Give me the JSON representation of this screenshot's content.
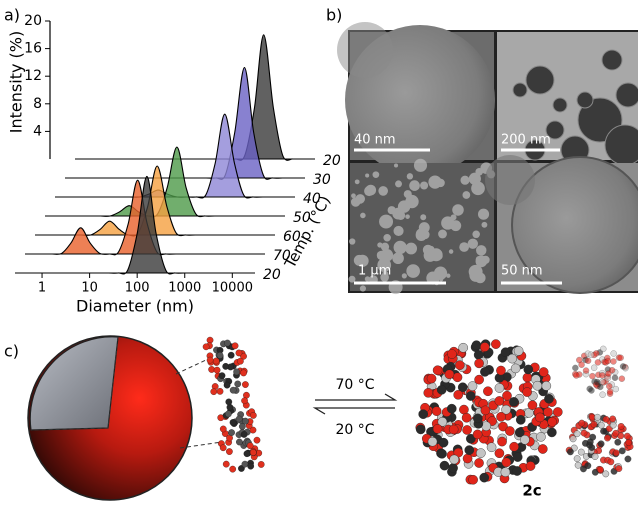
{
  "panel_labels": [
    "a)",
    "b)",
    "c)"
  ],
  "chart_data": {
    "type": "waterfall",
    "xlabel": "Diameter (nm)",
    "ylabel": "Intensity (%)",
    "zlabel": "Temp. (°C)",
    "xscale": "log",
    "xlim": [
      0.27,
      30000
    ],
    "xticks": [
      1,
      10,
      100,
      1000,
      10000
    ],
    "ylim": [
      0,
      20
    ],
    "yticks": [
      4,
      8,
      12,
      16,
      20
    ],
    "grid": false,
    "x": [
      1,
      1.6,
      2.5,
      4,
      6.3,
      10,
      16,
      25,
      40,
      63,
      100,
      160,
      250,
      400,
      630,
      1000,
      1600,
      2500,
      4000,
      6300,
      10000
    ],
    "series": [
      {
        "name": "20",
        "color": "#3a3a3a",
        "values": [
          0,
          0,
          0,
          0,
          0,
          0,
          0,
          0,
          0,
          0.4,
          5.7,
          14,
          5.7,
          0.4,
          0,
          0,
          0,
          0,
          0,
          0,
          0
        ]
      },
      {
        "name": "70",
        "color": "#e8602a",
        "values": [
          0,
          0.1,
          1.6,
          3.8,
          1.6,
          0.1,
          0,
          0.3,
          4.4,
          10.7,
          4.4,
          0.3,
          0,
          0,
          0,
          0,
          0,
          0,
          0,
          0,
          0
        ]
      },
      {
        "name": "60",
        "color": "#f5a040",
        "values": [
          0,
          0,
          0,
          0,
          0.8,
          2,
          0.8,
          0,
          0.3,
          4.1,
          10,
          4.1,
          0.3,
          0,
          0,
          0,
          0,
          0,
          0,
          0,
          0
        ]
      },
      {
        "name": "50",
        "color": "#4e9a48",
        "values": [
          0,
          0,
          0,
          0,
          0,
          0.6,
          1.5,
          0.6,
          0,
          0.3,
          4.1,
          10,
          4.1,
          0.3,
          0,
          0,
          0,
          0,
          0,
          0,
          0
        ]
      },
      {
        "name": "40",
        "color": "#8d86d6",
        "values": [
          0,
          0,
          0,
          0,
          0,
          0,
          0,
          0.4,
          1,
          0.4,
          0,
          0,
          0,
          0.3,
          4.9,
          12,
          4.9,
          0.3,
          0,
          0,
          0
        ]
      },
      {
        "name": "30",
        "color": "#6a62c4",
        "values": [
          0,
          0,
          0,
          0,
          0,
          0,
          0,
          0,
          0,
          0,
          0,
          0,
          0,
          0,
          0.4,
          6.6,
          16,
          6.6,
          0.4,
          0,
          0
        ]
      },
      {
        "name": "20",
        "color": "#3a3a3a",
        "values": [
          0,
          0,
          0,
          0,
          0,
          0,
          0,
          0,
          0,
          0,
          0,
          0,
          0,
          0,
          0,
          0.5,
          7.4,
          18,
          7.4,
          0.5,
          0
        ]
      }
    ]
  },
  "micrographs": {
    "scale_bars": [
      "40 nm",
      "200 nm",
      "1 µm",
      "50 nm"
    ]
  },
  "scheme": {
    "forward": "70 °C",
    "reverse": "20 °C",
    "compound": "2c"
  }
}
